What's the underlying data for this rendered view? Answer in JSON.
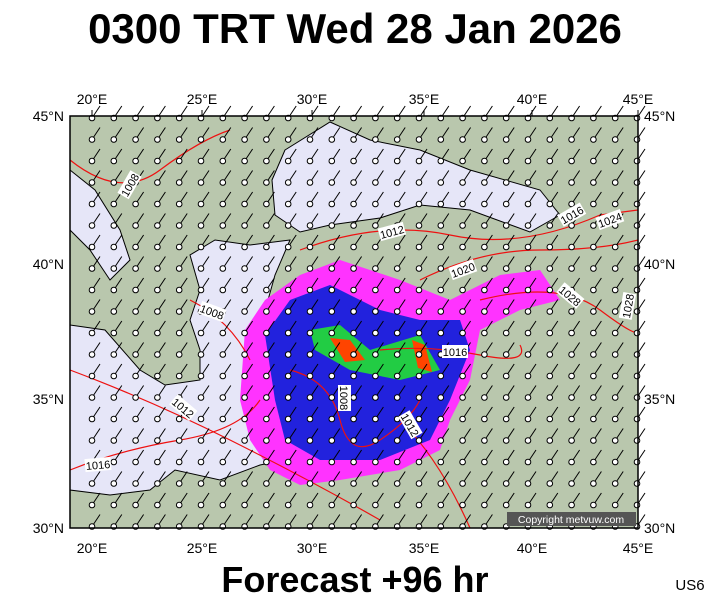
{
  "title": "0300 TRT Wed 28 Jan 2026",
  "footer": "Forecast +96 hr",
  "code": "US6",
  "copyright": "Copyright metvuw.com",
  "lon_labels": [
    "20°E",
    "25°E",
    "30°E",
    "35°E",
    "40°E",
    "45°E"
  ],
  "lat_labels": [
    "45°N",
    "40°N",
    "35°N",
    "30°N"
  ],
  "isobar_labels": [
    "1008",
    "1012",
    "1016",
    "1024",
    "1020",
    "1028",
    "1028",
    "1008",
    "1016",
    "1008",
    "1012",
    "1012",
    "1016"
  ]
}
